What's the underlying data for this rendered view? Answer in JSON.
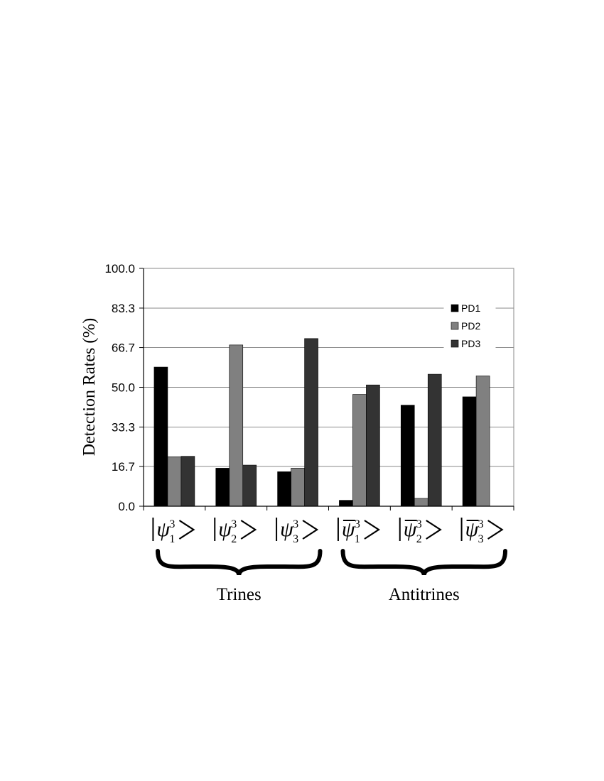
{
  "chart_data": {
    "type": "bar",
    "ylabel": "Detection Rates (%)",
    "ylim": [
      0,
      100
    ],
    "yticks": [
      "0.0",
      "16.7",
      "33.3",
      "50.0",
      "66.7",
      "83.3",
      "100.0"
    ],
    "ytick_values": [
      0,
      16.7,
      33.3,
      50.0,
      66.7,
      83.3,
      100.0
    ],
    "grid": true,
    "legend_position": "top-right",
    "categories": [
      {
        "psi": "ψ",
        "bar": false,
        "sup": "3",
        "sub": "1"
      },
      {
        "psi": "ψ",
        "bar": false,
        "sup": "3",
        "sub": "2"
      },
      {
        "psi": "ψ",
        "bar": false,
        "sup": "3",
        "sub": "3"
      },
      {
        "psi": "ψ",
        "bar": true,
        "sup": "3",
        "sub": "1"
      },
      {
        "psi": "ψ",
        "bar": true,
        "sup": "3",
        "sub": "2"
      },
      {
        "psi": "ψ",
        "bar": true,
        "sup": "3",
        "sub": "3"
      }
    ],
    "series": [
      {
        "name": "PD1",
        "color": "#000000",
        "values": [
          58.5,
          16.0,
          14.5,
          2.5,
          42.5,
          46.0
        ]
      },
      {
        "name": "PD2",
        "color": "#808080",
        "values": [
          20.8,
          67.8,
          16.0,
          47.0,
          3.3,
          54.8
        ]
      },
      {
        "name": "PD3",
        "color": "#333333",
        "values": [
          21.0,
          17.3,
          70.5,
          51.0,
          55.5,
          0
        ]
      }
    ],
    "groups": [
      {
        "label": "Trines",
        "categories": [
          0,
          1,
          2
        ]
      },
      {
        "label": "Antitrines",
        "categories": [
          3,
          4,
          5
        ]
      }
    ]
  }
}
